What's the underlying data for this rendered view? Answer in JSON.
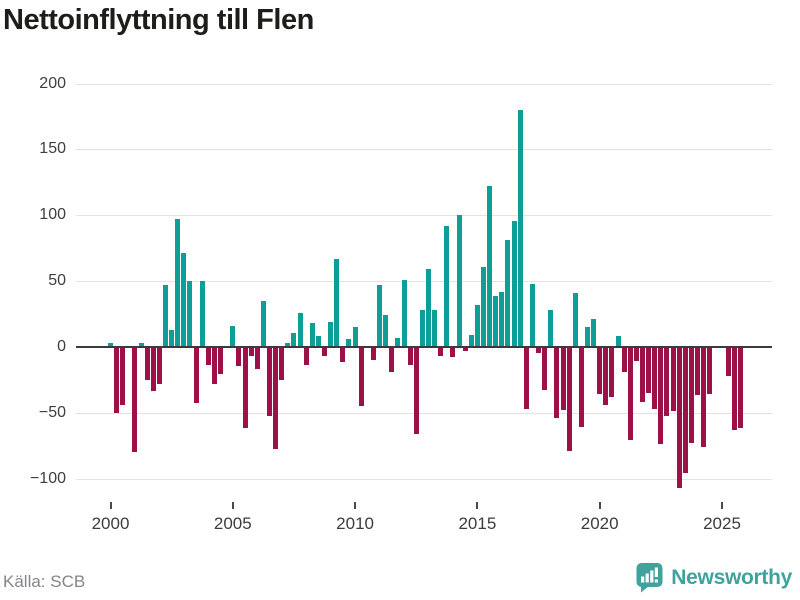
{
  "title": "Nettoinflyttning till Flen",
  "source": "Källa: SCB",
  "branding": {
    "name": "Newsworthy",
    "icon": "newsworthy-bars-icon"
  },
  "colors": {
    "positive": "#0d9e98",
    "negative": "#9e1048",
    "grid": "#e3e3e3",
    "zero_line": "#3b3b3b",
    "title_text": "#1d1d1b",
    "axis_text": "#3f3f3f",
    "source_text": "#85858a",
    "brand": "#3fa39c",
    "background": "#ffffff"
  },
  "chart_data": {
    "type": "bar",
    "title": "Nettoinflyttning till Flen",
    "frequency": "quarterly",
    "start": "2000-Q1",
    "end": "2025-Q4",
    "grid": "horizontal",
    "legend": "none",
    "ylim": [
      -120,
      212
    ],
    "y_ticks": [
      200,
      150,
      100,
      50,
      0,
      -50,
      -100
    ],
    "y_tick_labels": [
      "200",
      "150",
      "100",
      "50",
      "0",
      "−50",
      "−100"
    ],
    "x_tick_years": [
      2000,
      2005,
      2010,
      2015,
      2020,
      2025
    ],
    "x_tick_labels": [
      "2000",
      "2005",
      "2010",
      "2015",
      "2020",
      "2025"
    ],
    "series": [
      {
        "name": "Nettoinflyttning",
        "values": [
          3,
          -49,
          -43,
          0,
          -79,
          3,
          -24,
          -33,
          -27,
          47,
          13,
          97,
          71,
          50,
          -42,
          50,
          -13,
          -27,
          -20,
          0,
          16,
          -14,
          -61,
          -6,
          -16,
          35,
          -52,
          -77,
          -24,
          3,
          11,
          26,
          -13,
          18,
          8,
          -6,
          19,
          67,
          -11,
          6,
          15,
          -44,
          0,
          -9,
          47,
          24,
          -18,
          7,
          51,
          -13,
          -65,
          28,
          59,
          28,
          -6,
          92,
          -7,
          100,
          -2,
          9,
          32,
          61,
          122,
          39,
          42,
          81,
          96,
          180,
          -46,
          48,
          -4,
          -32,
          28,
          -53,
          -47,
          -78,
          41,
          -60,
          15,
          21,
          -35,
          -43,
          -37,
          8,
          -18,
          -70,
          -10,
          -41,
          -34,
          -46,
          -73,
          -52,
          -48,
          -106,
          -95,
          -72,
          -36,
          -75,
          -35,
          0,
          0,
          -21,
          -62,
          -61
        ]
      }
    ]
  }
}
